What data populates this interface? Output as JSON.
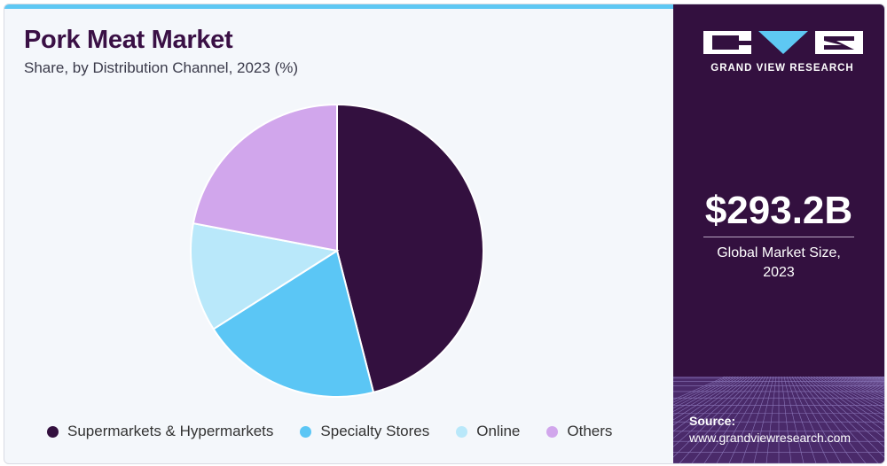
{
  "header": {
    "title": "Pork Meat Market",
    "subtitle": "Share, by Distribution Channel, 2023 (%)"
  },
  "chart_data": {
    "type": "pie",
    "start_angle_deg": 0,
    "direction": "clockwise",
    "categories": [
      "Supermarkets & Hypermarkets",
      "Specialty Stores",
      "Online",
      "Others"
    ],
    "values": [
      46,
      20,
      12,
      22
    ],
    "colors": [
      "#33103f",
      "#5bc6f5",
      "#b9e8fa",
      "#d1a6ec"
    ],
    "legend": "bottom"
  },
  "brand": {
    "logo_text": "GRAND VIEW RESEARCH",
    "market_value": "$293.2B",
    "market_label_line1": "Global Market Size,",
    "market_label_line2": "2023"
  },
  "source": {
    "title": "Source:",
    "url": "www.grandviewresearch.com"
  },
  "colors": {
    "accent": "#5ec8f3",
    "panel": "#33103f",
    "title": "#3a1045"
  }
}
